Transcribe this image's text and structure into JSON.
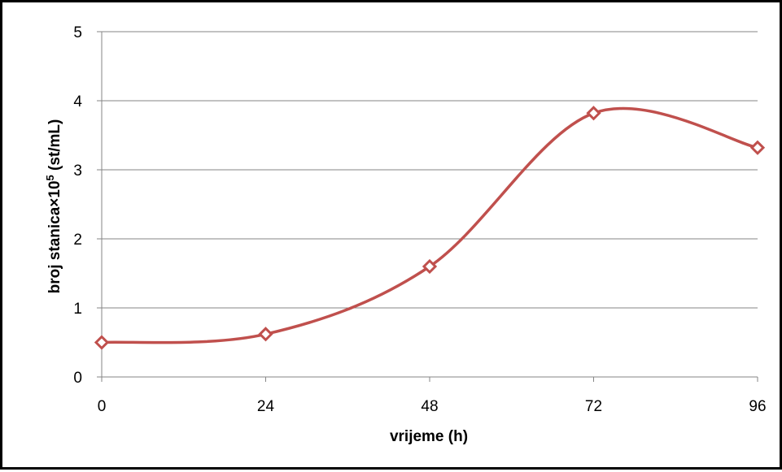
{
  "chart_data": {
    "type": "line",
    "title": "",
    "xlabel": "vrijeme (h)",
    "ylabel": {
      "prefix": "broj stanica×10",
      "superscript": "5",
      "suffix": " (st/mL)"
    },
    "x": [
      0,
      24,
      48,
      72,
      96
    ],
    "xticks": [
      "0",
      "24",
      "48",
      "72",
      "96"
    ],
    "yticks": [
      "0",
      "1",
      "2",
      "3",
      "4",
      "5"
    ],
    "xlim": [
      0,
      96
    ],
    "ylim": [
      0,
      5
    ],
    "grid": "horizontal",
    "legend": "none",
    "smooth": true,
    "series": [
      {
        "values": [
          0.5,
          0.62,
          1.6,
          3.82,
          3.32
        ],
        "color": "#c0504d",
        "marker": "diamond-open"
      }
    ]
  }
}
